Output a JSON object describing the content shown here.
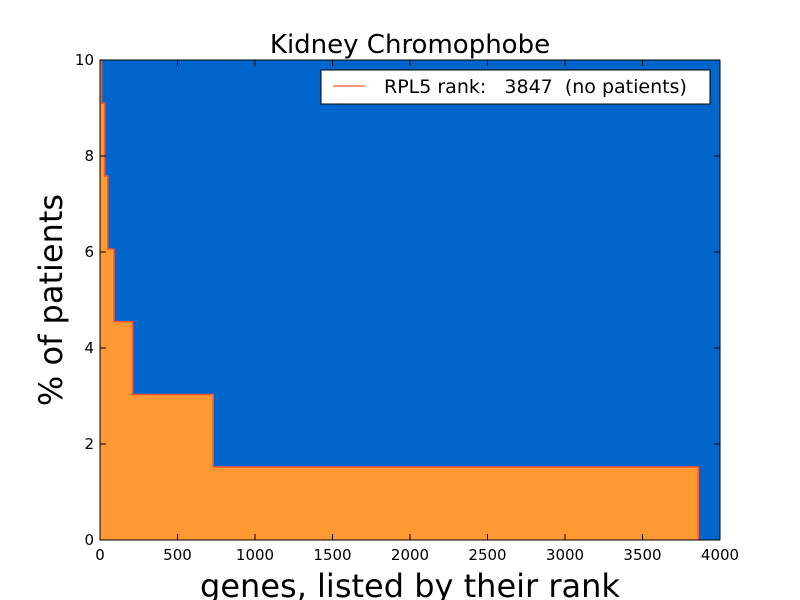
{
  "chart_data": {
    "type": "area",
    "title": "Kidney Chromophobe",
    "xlabel": "genes, listed by their rank",
    "ylabel": "% of patients",
    "xlim": [
      0,
      4000
    ],
    "ylim": [
      0,
      10
    ],
    "xticks": [
      "0",
      "500",
      "1000",
      "1500",
      "2000",
      "2500",
      "3000",
      "3500",
      "4000"
    ],
    "yticks": [
      "0",
      "2",
      "4",
      "6",
      "8",
      "10"
    ],
    "grid": false,
    "legend_position": "top-right",
    "background_color": "#0066cc",
    "fill_color": "#ff9933",
    "line_color": "#ff5533",
    "series": [
      {
        "name": "RPL5 rank:   3847  (no patients)",
        "x": [
          0,
          10,
          10,
          30,
          30,
          50,
          50,
          90,
          90,
          210,
          210,
          730,
          730,
          3860,
          3860
        ],
        "y": [
          10,
          10,
          9.1,
          9.1,
          7.58,
          7.58,
          6.06,
          6.06,
          4.55,
          4.55,
          3.03,
          3.03,
          1.52,
          1.52,
          0
        ]
      }
    ]
  }
}
